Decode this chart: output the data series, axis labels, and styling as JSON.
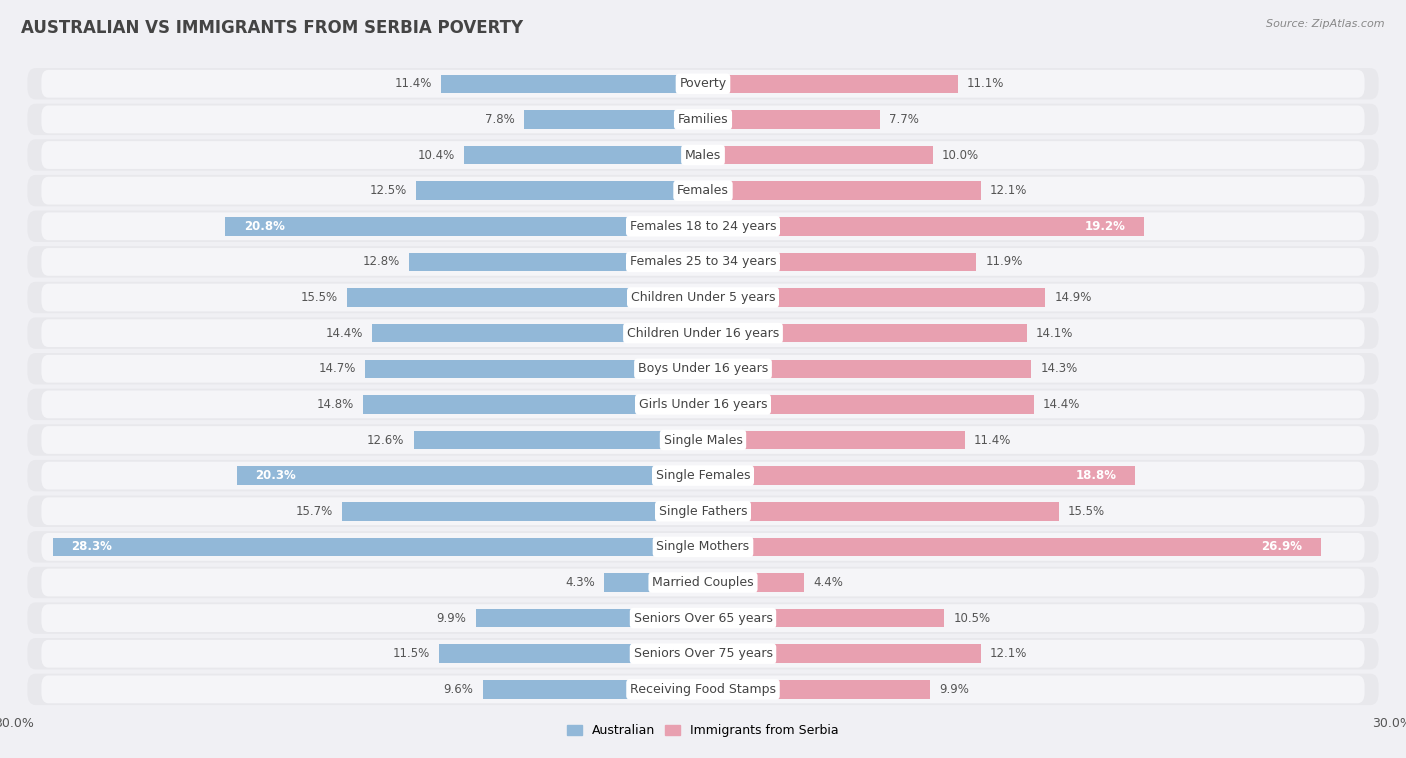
{
  "title": "AUSTRALIAN VS IMMIGRANTS FROM SERBIA POVERTY",
  "source": "Source: ZipAtlas.com",
  "categories": [
    "Poverty",
    "Families",
    "Males",
    "Females",
    "Females 18 to 24 years",
    "Females 25 to 34 years",
    "Children Under 5 years",
    "Children Under 16 years",
    "Boys Under 16 years",
    "Girls Under 16 years",
    "Single Males",
    "Single Females",
    "Single Fathers",
    "Single Mothers",
    "Married Couples",
    "Seniors Over 65 years",
    "Seniors Over 75 years",
    "Receiving Food Stamps"
  ],
  "australian": [
    11.4,
    7.8,
    10.4,
    12.5,
    20.8,
    12.8,
    15.5,
    14.4,
    14.7,
    14.8,
    12.6,
    20.3,
    15.7,
    28.3,
    4.3,
    9.9,
    11.5,
    9.6
  ],
  "serbia": [
    11.1,
    7.7,
    10.0,
    12.1,
    19.2,
    11.9,
    14.9,
    14.1,
    14.3,
    14.4,
    11.4,
    18.8,
    15.5,
    26.9,
    4.4,
    10.5,
    12.1,
    9.9
  ],
  "australian_color": "#92b8d8",
  "serbia_color": "#e8a0b0",
  "row_bg_color": "#e8e8ec",
  "bar_bg_color": "#f5f5f8",
  "label_bg_color": "#ffffff",
  "outer_bg_color": "#f0f0f4",
  "xlim": 30.0,
  "title_fontsize": 12,
  "label_fontsize": 9,
  "value_fontsize": 8.5,
  "legend_australian": "Australian",
  "legend_serbia": "Immigrants from Serbia"
}
